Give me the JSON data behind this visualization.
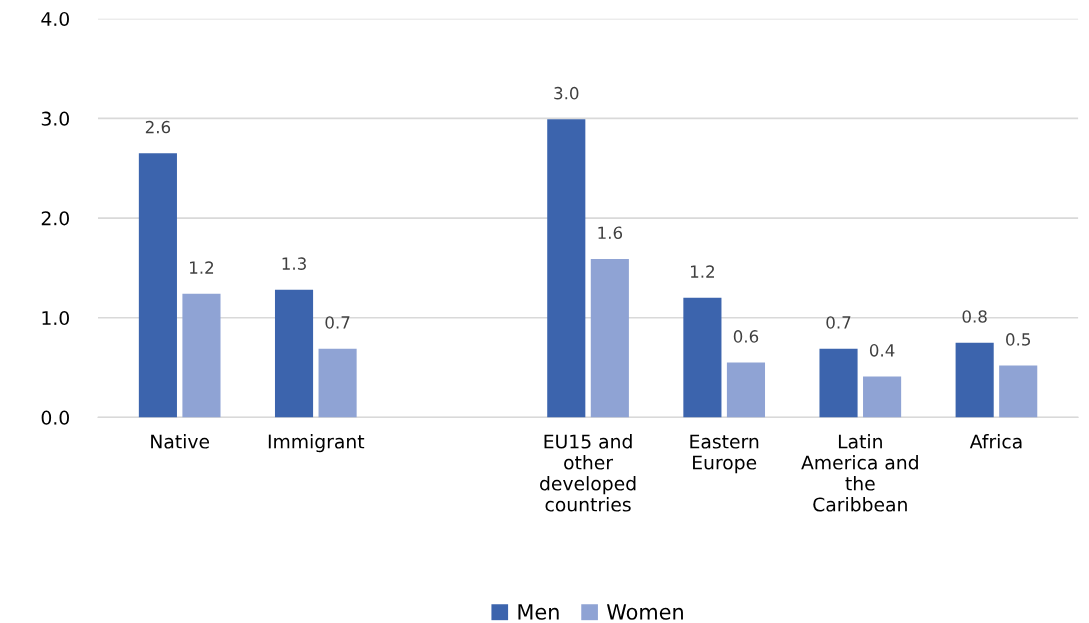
{
  "chart_data": {
    "type": "bar",
    "categories": [
      "Native",
      "Immigrant",
      null,
      "EU15 and\nother\ndeveloped\ncountries",
      "Eastern\nEurope",
      "Latin\nAmerica and\nthe\nCaribbean",
      "Africa"
    ],
    "series": [
      {
        "name": "Men",
        "color": "#3c64ad",
        "values": [
          2.65,
          1.28,
          null,
          2.99,
          1.2,
          0.69,
          0.75
        ],
        "value_labels": [
          "2.6",
          "1.3",
          null,
          "3.0",
          "1.2",
          "0.7",
          "0.8"
        ]
      },
      {
        "name": "Women",
        "color": "#8fa3d4",
        "values": [
          1.24,
          0.69,
          null,
          1.59,
          0.55,
          0.41,
          0.52
        ],
        "value_labels": [
          "1.2",
          "0.7",
          null,
          "1.6",
          "0.6",
          "0.4",
          "0.5"
        ]
      }
    ],
    "ylim": [
      0,
      4
    ],
    "yticks": [
      {
        "value": 0,
        "label": "0.0"
      },
      {
        "value": 1,
        "label": "1.0"
      },
      {
        "value": 2,
        "label": "2.0"
      },
      {
        "value": 3,
        "label": "3.0"
      },
      {
        "value": 4,
        "label": "4.0"
      }
    ],
    "grid": "y",
    "legend": "bottom"
  }
}
